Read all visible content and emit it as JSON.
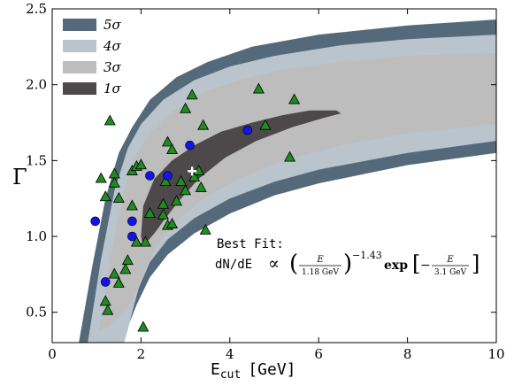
{
  "chart_data": {
    "type": "scatter",
    "xlabel_main": "E",
    "xlabel_sub": "cut",
    "xlabel_unit": "[GeV]",
    "ylabel": "Γ",
    "xlim": [
      0,
      10
    ],
    "ylim": [
      0.3,
      2.5
    ],
    "xticks": [
      "0",
      "2",
      "4",
      "6",
      "8",
      "10"
    ],
    "yticks": [
      "0.5",
      "1.0",
      "1.5",
      "2.0",
      "2.5"
    ],
    "legend_position": "top-left",
    "contours": [
      {
        "name": "5σ",
        "color": "#546a7b",
        "upper": [
          [
            0.6,
            0.3
          ],
          [
            0.9,
            0.8
          ],
          [
            1.2,
            1.25
          ],
          [
            1.5,
            1.55
          ],
          [
            1.8,
            1.72
          ],
          [
            2.2,
            1.9
          ],
          [
            2.8,
            2.05
          ],
          [
            3.5,
            2.15
          ],
          [
            4.5,
            2.25
          ],
          [
            6,
            2.33
          ],
          [
            8,
            2.39
          ],
          [
            10,
            2.43
          ]
        ],
        "lower": [
          [
            10,
            1.55
          ],
          [
            8,
            1.47
          ],
          [
            6,
            1.35
          ],
          [
            5,
            1.27
          ],
          [
            4,
            1.15
          ],
          [
            3.2,
            1.02
          ],
          [
            2.6,
            0.88
          ],
          [
            2.2,
            0.73
          ],
          [
            1.9,
            0.55
          ],
          [
            1.7,
            0.4
          ],
          [
            1.55,
            0.3
          ]
        ]
      },
      {
        "name": "4σ",
        "color": "#b9c4cd",
        "upper": [
          [
            0.8,
            0.3
          ],
          [
            1.1,
            0.85
          ],
          [
            1.4,
            1.3
          ],
          [
            1.7,
            1.58
          ],
          [
            2.0,
            1.74
          ],
          [
            2.5,
            1.9
          ],
          [
            3.2,
            2.03
          ],
          [
            4,
            2.12
          ],
          [
            5,
            2.19
          ],
          [
            6.5,
            2.26
          ],
          [
            8,
            2.3
          ],
          [
            10,
            2.33
          ]
        ],
        "lower": [
          [
            10,
            1.63
          ],
          [
            8,
            1.55
          ],
          [
            6,
            1.44
          ],
          [
            5,
            1.36
          ],
          [
            4,
            1.25
          ],
          [
            3.2,
            1.12
          ],
          [
            2.6,
            0.98
          ],
          [
            2.2,
            0.83
          ],
          [
            1.95,
            0.66
          ],
          [
            1.8,
            0.5
          ],
          [
            1.7,
            0.38
          ],
          [
            1.62,
            0.3
          ]
        ]
      },
      {
        "name": "3σ",
        "color": "#bdbdbd",
        "upper": [
          [
            1.05,
            0.38
          ],
          [
            1.3,
            0.85
          ],
          [
            1.6,
            1.28
          ],
          [
            1.9,
            1.55
          ],
          [
            2.2,
            1.68
          ],
          [
            2.7,
            1.82
          ],
          [
            3.4,
            1.95
          ],
          [
            4.2,
            2.03
          ],
          [
            5.2,
            2.1
          ],
          [
            6.5,
            2.15
          ],
          [
            8,
            2.19
          ],
          [
            10,
            2.21
          ]
        ],
        "lower": [
          [
            10,
            1.74
          ],
          [
            8,
            1.68
          ],
          [
            6.5,
            1.6
          ],
          [
            5.2,
            1.5
          ],
          [
            4.2,
            1.38
          ],
          [
            3.4,
            1.25
          ],
          [
            2.8,
            1.1
          ],
          [
            2.4,
            0.96
          ],
          [
            2.1,
            0.8
          ],
          [
            1.9,
            0.65
          ],
          [
            1.75,
            0.55
          ],
          [
            1.5,
            0.47
          ],
          [
            1.25,
            0.4
          ]
        ]
      },
      {
        "name": "1σ",
        "color": "#4d4849",
        "upper": [
          [
            2.0,
            1.0
          ],
          [
            2.05,
            1.2
          ],
          [
            2.3,
            1.38
          ],
          [
            2.7,
            1.5
          ],
          [
            3.2,
            1.6
          ],
          [
            3.8,
            1.69
          ],
          [
            4.5,
            1.75
          ],
          [
            5.2,
            1.8
          ],
          [
            5.8,
            1.83
          ],
          [
            6.4,
            1.83
          ],
          [
            6.5,
            1.81
          ]
        ],
        "lower": [
          [
            6.5,
            1.81
          ],
          [
            6.1,
            1.78
          ],
          [
            5.4,
            1.72
          ],
          [
            4.6,
            1.63
          ],
          [
            3.9,
            1.52
          ],
          [
            3.3,
            1.38
          ],
          [
            2.9,
            1.25
          ],
          [
            2.55,
            1.12
          ],
          [
            2.3,
            1.02
          ],
          [
            2.15,
            0.97
          ],
          [
            2.02,
            0.97
          ]
        ]
      }
    ],
    "legend": [
      {
        "label": "5σ",
        "color": "#546a7b"
      },
      {
        "label": "4σ",
        "color": "#b9c4cd"
      },
      {
        "label": "3σ",
        "color": "#bdbdbd"
      },
      {
        "label": "1σ",
        "color": "#4d4849"
      }
    ],
    "series": [
      {
        "marker": "triangle",
        "color": "#1e8c1e",
        "points": [
          [
            1.1,
            1.38
          ],
          [
            1.2,
            1.26
          ],
          [
            1.3,
            1.76
          ],
          [
            1.4,
            1.41
          ],
          [
            1.4,
            1.35
          ],
          [
            1.5,
            1.25
          ],
          [
            1.2,
            0.57
          ],
          [
            1.25,
            0.51
          ],
          [
            1.4,
            0.75
          ],
          [
            1.5,
            0.69
          ],
          [
            1.65,
            0.78
          ],
          [
            1.7,
            0.84
          ],
          [
            1.8,
            1.2
          ],
          [
            1.8,
            1.43
          ],
          [
            1.9,
            1.46
          ],
          [
            1.9,
            0.96
          ],
          [
            2.1,
            0.96
          ],
          [
            2.2,
            1.15
          ],
          [
            2.0,
            1.47
          ],
          [
            2.5,
            1.21
          ],
          [
            2.5,
            1.14
          ],
          [
            2.6,
            1.62
          ],
          [
            2.7,
            1.57
          ],
          [
            2.55,
            1.36
          ],
          [
            2.6,
            1.07
          ],
          [
            2.7,
            1.08
          ],
          [
            2.8,
            1.23
          ],
          [
            2.9,
            1.36
          ],
          [
            3.0,
            1.84
          ],
          [
            3.0,
            1.3
          ],
          [
            3.15,
            1.93
          ],
          [
            3.2,
            1.39
          ],
          [
            3.3,
            1.43
          ],
          [
            3.35,
            1.32
          ],
          [
            3.4,
            1.73
          ],
          [
            3.45,
            1.04
          ],
          [
            2.05,
            0.4
          ],
          [
            4.65,
            1.97
          ],
          [
            4.8,
            1.73
          ],
          [
            5.35,
            1.52
          ],
          [
            5.45,
            1.9
          ]
        ]
      },
      {
        "marker": "circle",
        "color": "#1414e6",
        "points": [
          [
            0.97,
            1.1
          ],
          [
            1.2,
            0.7
          ],
          [
            1.8,
            1.1
          ],
          [
            1.8,
            1.0
          ],
          [
            2.2,
            1.4
          ],
          [
            2.6,
            1.4
          ],
          [
            3.1,
            1.6
          ],
          [
            4.4,
            1.7
          ]
        ]
      },
      {
        "marker": "cross",
        "color": "#ffffff",
        "points": [
          [
            3.15,
            1.43
          ]
        ]
      }
    ],
    "annotation": {
      "label": "Best Fit:",
      "eq_lhs": "dN/dE",
      "propto": "∝",
      "num1": "E",
      "den1": "1.18 GeV",
      "exponent": "−1.43",
      "exp_word": "exp",
      "minus": "−",
      "num2": "E",
      "den2": "3.1 GeV"
    }
  }
}
